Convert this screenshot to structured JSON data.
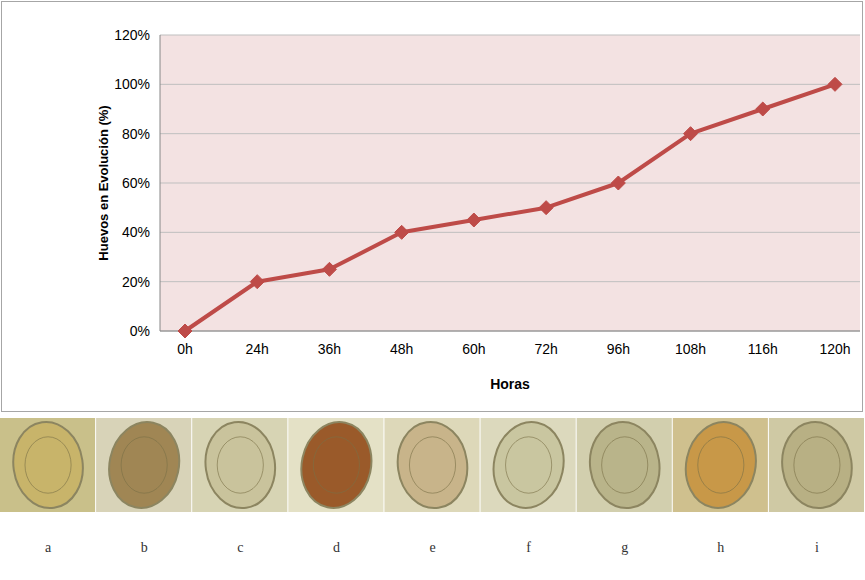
{
  "chart_data": {
    "type": "line",
    "categories": [
      "0h",
      "24h",
      "36h",
      "48h",
      "60h",
      "72h",
      "96h",
      "108h",
      "116h",
      "120h"
    ],
    "values": [
      0,
      20,
      25,
      40,
      45,
      50,
      60,
      80,
      90,
      100
    ],
    "color": "#be4b48",
    "marker": "diamond",
    "x_label": "Horas",
    "y_label": "Huevos en Evolución (%)",
    "ylim": [
      0,
      120
    ],
    "yticks": [
      {
        "value": 0,
        "label": "0%"
      },
      {
        "value": 20,
        "label": "20%"
      },
      {
        "value": 40,
        "label": "40%"
      },
      {
        "value": 60,
        "label": "60%"
      },
      {
        "value": 80,
        "label": "80%"
      },
      {
        "value": 100,
        "label": "100%"
      },
      {
        "value": 120,
        "label": "120%"
      }
    ],
    "grid": true
  },
  "image_strip": {
    "labels": [
      "a",
      "b",
      "c",
      "d",
      "e",
      "f",
      "g",
      "h",
      "i"
    ]
  }
}
